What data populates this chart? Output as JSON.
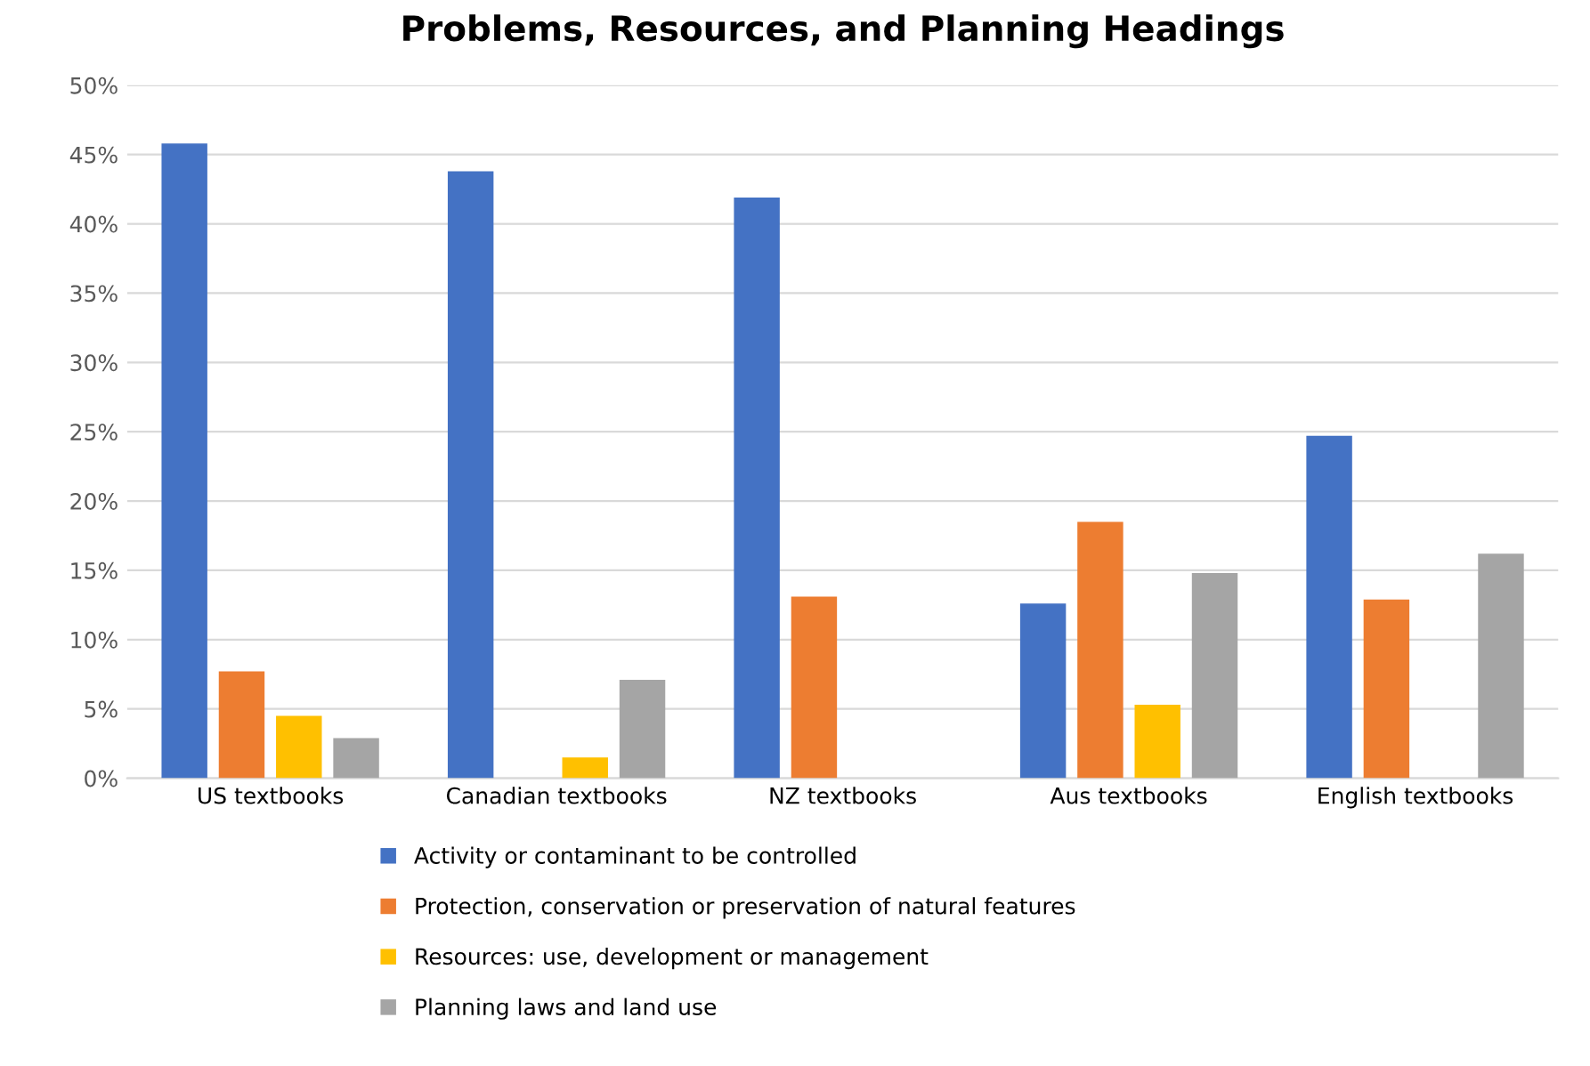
{
  "chart_data": {
    "type": "bar",
    "title": "Problems, Resources, and Planning Headings",
    "categories": [
      "US textbooks",
      "Canadian textbooks",
      "NZ textbooks",
      "Aus textbooks",
      "English textbooks"
    ],
    "series": [
      {
        "name": "Activity or contaminant to be controlled",
        "color": "#4472c4",
        "values": [
          45.8,
          43.8,
          41.9,
          12.6,
          24.7
        ]
      },
      {
        "name": "Protection, conservation or preservation of natural features",
        "color": "#ed7d31",
        "values": [
          7.7,
          null,
          13.1,
          18.5,
          12.9
        ]
      },
      {
        "name": "Resources: use, development or management",
        "color": "#ffc000",
        "values": [
          4.5,
          1.5,
          null,
          5.3,
          null
        ]
      },
      {
        "name": "Planning laws and land use",
        "color": "#a5a5a5",
        "values": [
          2.9,
          7.1,
          null,
          14.8,
          16.2
        ]
      }
    ],
    "ylim": [
      0,
      50
    ],
    "yticks": [
      {
        "value": 0,
        "label": "0%"
      },
      {
        "value": 5,
        "label": "5%"
      },
      {
        "value": 10,
        "label": "10%"
      },
      {
        "value": 15,
        "label": "15%"
      },
      {
        "value": 20,
        "label": "20%"
      },
      {
        "value": 25,
        "label": "25%"
      },
      {
        "value": 30,
        "label": "30%"
      },
      {
        "value": 35,
        "label": "35%"
      },
      {
        "value": 40,
        "label": "40%"
      },
      {
        "value": 45,
        "label": "45%"
      },
      {
        "value": 50,
        "label": "50%"
      }
    ],
    "grid": "y",
    "legend": "bottom"
  }
}
